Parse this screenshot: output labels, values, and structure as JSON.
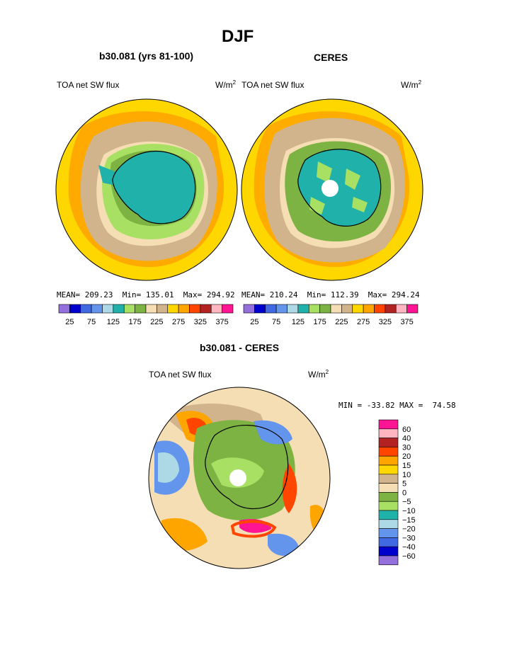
{
  "figure": {
    "title": "DJF",
    "season": "DJF"
  },
  "panels": [
    {
      "subtitle": "b30.081 (yrs 81-100)",
      "left_label": "TOA net SW flux",
      "units_base": "W/m",
      "units_sup": "2",
      "stats_text": "MEAN= 209.23  Min= 135.01  Max= 294.92"
    },
    {
      "subtitle": "CERES",
      "left_label": "TOA net SW flux",
      "units_base": "W/m",
      "units_sup": "2",
      "stats_text": "MEAN= 210.24  Min= 112.39  Max= 294.24"
    },
    {
      "subtitle": "b30.081 - CERES",
      "left_label": "TOA net SW flux",
      "units_base": "W/m",
      "units_sup": "2",
      "stats_text": "MIN = -33.82 MAX =  74.58"
    }
  ],
  "colorbar_top": {
    "colors": [
      "#9370db",
      "#0000cd",
      "#4169e1",
      "#6495ed",
      "#add8e6",
      "#20b2aa",
      "#a8e063",
      "#7cb342",
      "#f5deb3",
      "#d2b48c",
      "#ffd700",
      "#ffa500",
      "#ff4500",
      "#b22222",
      "#ffb6c1",
      "#ff1493"
    ],
    "labels": [
      "25",
      "75",
      "125",
      "175",
      "225",
      "275",
      "325",
      "375"
    ]
  },
  "colorbar_diff": {
    "colors_top_to_bottom": [
      "#ff1493",
      "#ffb6c1",
      "#b22222",
      "#ff4500",
      "#ffa500",
      "#ffd700",
      "#d2b48c",
      "#f5deb3",
      "#7cb342",
      "#a8e063",
      "#20b2aa",
      "#add8e6",
      "#6495ed",
      "#4169e1",
      "#0000cd",
      "#9370db"
    ],
    "labels_top_to_bottom": [
      "60",
      "40",
      "30",
      "20",
      "15",
      "10",
      "5",
      "0",
      "−5",
      "−10",
      "−15",
      "−20",
      "−30",
      "−40",
      "−60"
    ]
  },
  "chart_data": [
    {
      "type": "heatmap",
      "title": "b30.081 (yrs 81-100)",
      "variable": "TOA net SW flux",
      "units": "W/m2",
      "projection": "south polar stereographic",
      "mean": 209.23,
      "min": 135.01,
      "max": 294.92,
      "contour_levels": [
        25,
        50,
        75,
        100,
        125,
        150,
        175,
        200,
        225,
        250,
        275,
        300,
        325,
        350,
        375
      ]
    },
    {
      "type": "heatmap",
      "title": "CERES",
      "variable": "TOA net SW flux",
      "units": "W/m2",
      "projection": "south polar stereographic",
      "mean": 210.24,
      "min": 112.39,
      "max": 294.24,
      "contour_levels": [
        25,
        50,
        75,
        100,
        125,
        150,
        175,
        200,
        225,
        250,
        275,
        300,
        325,
        350,
        375
      ]
    },
    {
      "type": "heatmap",
      "title": "b30.081 - CERES",
      "variable": "TOA net SW flux",
      "units": "W/m2",
      "projection": "south polar stereographic",
      "min": -33.82,
      "max": 74.58,
      "contour_levels": [
        -60,
        -40,
        -30,
        -20,
        -15,
        -10,
        -5,
        0,
        5,
        10,
        15,
        20,
        30,
        40,
        60
      ]
    }
  ]
}
